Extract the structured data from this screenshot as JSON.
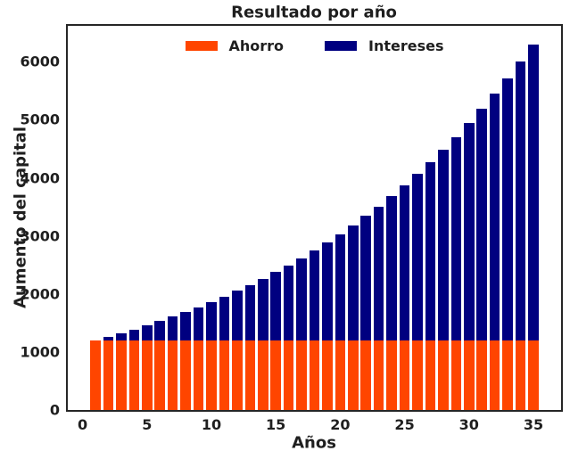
{
  "title": "Resultado por año",
  "axis_color": "#262626",
  "text_color": "#1f1f1f",
  "background_color": "#ffffff",
  "chart_data": {
    "type": "bar",
    "stacked": true,
    "title": "Resultado por año",
    "xlabel": "Años",
    "ylabel": "Aumento del capital",
    "grid": false,
    "legend_position": "upper center",
    "bar_width": 0.8,
    "xlim": [
      -1.15,
      37.15
    ],
    "ylim": [
      0,
      6620
    ],
    "x_ticks": [
      0,
      5,
      10,
      15,
      20,
      25,
      30,
      35
    ],
    "y_ticks": [
      0,
      1000,
      2000,
      3000,
      4000,
      5000,
      6000
    ],
    "x": [
      1,
      2,
      3,
      4,
      5,
      6,
      7,
      8,
      9,
      10,
      11,
      12,
      13,
      14,
      15,
      16,
      17,
      18,
      19,
      20,
      21,
      22,
      23,
      24,
      25,
      26,
      27,
      28,
      29,
      30,
      31,
      32,
      33,
      34,
      35
    ],
    "series": [
      {
        "name": "Ahorro",
        "color": "#FF4500",
        "values": [
          1200,
          1200,
          1200,
          1200,
          1200,
          1200,
          1200,
          1200,
          1200,
          1200,
          1200,
          1200,
          1200,
          1200,
          1200,
          1200,
          1200,
          1200,
          1200,
          1200,
          1200,
          1200,
          1200,
          1200,
          1200,
          1200,
          1200,
          1200,
          1200,
          1200,
          1200,
          1200,
          1200,
          1200,
          1200
        ]
      },
      {
        "name": "Intereses",
        "color": "#000080",
        "values": [
          0,
          60,
          123,
          189,
          259,
          332,
          408,
          489,
          573,
          662,
          755,
          852,
          955,
          1063,
          1176,
          1295,
          1419,
          1550,
          1688,
          1832,
          1984,
          2143,
          2310,
          2486,
          2670,
          2864,
          3067,
          3280,
          3504,
          3739,
          3986,
          4246,
          4518,
          4804,
          5104
        ]
      }
    ]
  }
}
